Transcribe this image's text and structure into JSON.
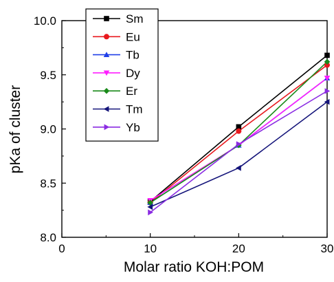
{
  "chart_data": {
    "type": "line",
    "xlabel": "Molar ratio KOH:POM",
    "ylabel": "pKa of cluster",
    "xlim": [
      0,
      30
    ],
    "ylim": [
      8.0,
      10.0
    ],
    "x_ticks": [
      "0",
      "10",
      "20",
      "30"
    ],
    "y_ticks": [
      "8.0",
      "8.5",
      "9.0",
      "9.5",
      "10.0"
    ],
    "grid": false,
    "legend_position": "top-left",
    "x": [
      10,
      20,
      30
    ],
    "series": [
      {
        "name": "Sm",
        "color": "#000000",
        "marker": "square",
        "values": [
          8.33,
          9.02,
          9.68
        ]
      },
      {
        "name": "Eu",
        "color": "#e8191e",
        "marker": "circle",
        "values": [
          8.32,
          8.98,
          9.59
        ]
      },
      {
        "name": "Tb",
        "color": "#1f3fe8",
        "marker": "triangle-up",
        "values": [
          8.32,
          8.85,
          9.47
        ]
      },
      {
        "name": "Dy",
        "color": "#ff1dff",
        "marker": "triangle-down",
        "values": [
          8.34,
          8.85,
          9.47
        ]
      },
      {
        "name": "Er",
        "color": "#1a8a1a",
        "marker": "diamond",
        "values": [
          8.32,
          8.85,
          9.62
        ]
      },
      {
        "name": "Tm",
        "color": "#14147a",
        "marker": "triangle-left",
        "values": [
          8.28,
          8.64,
          9.25
        ]
      },
      {
        "name": "Yb",
        "color": "#8a2be2",
        "marker": "triangle-right",
        "values": [
          8.23,
          8.86,
          9.35
        ]
      }
    ]
  }
}
